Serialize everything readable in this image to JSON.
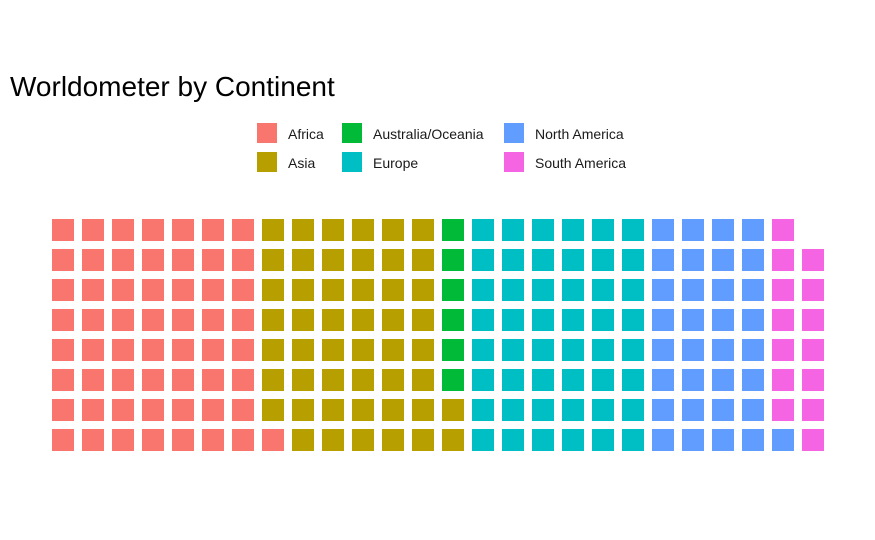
{
  "chart_data": {
    "type": "waffle",
    "title": "Worldometer by Continent",
    "rows": 8,
    "columns": 26,
    "fill_order": "column-wise, bottom to top, left to right",
    "categories": [
      {
        "name": "Africa",
        "color": "#F8766D",
        "count": 57
      },
      {
        "name": "Asia",
        "color": "#B79F00",
        "count": 49
      },
      {
        "name": "Australia/Oceania",
        "color": "#00BA38",
        "count": 6
      },
      {
        "name": "Europe",
        "color": "#00BFC4",
        "count": 48
      },
      {
        "name": "North America",
        "color": "#619CFF",
        "count": 33
      },
      {
        "name": "South America",
        "color": "#F564E3",
        "count": 14
      }
    ],
    "legend": {
      "position": "top",
      "columns": [
        [
          "Africa",
          "Asia"
        ],
        [
          "Australia/Oceania",
          "Europe"
        ],
        [
          "North America",
          "South America"
        ]
      ]
    }
  }
}
